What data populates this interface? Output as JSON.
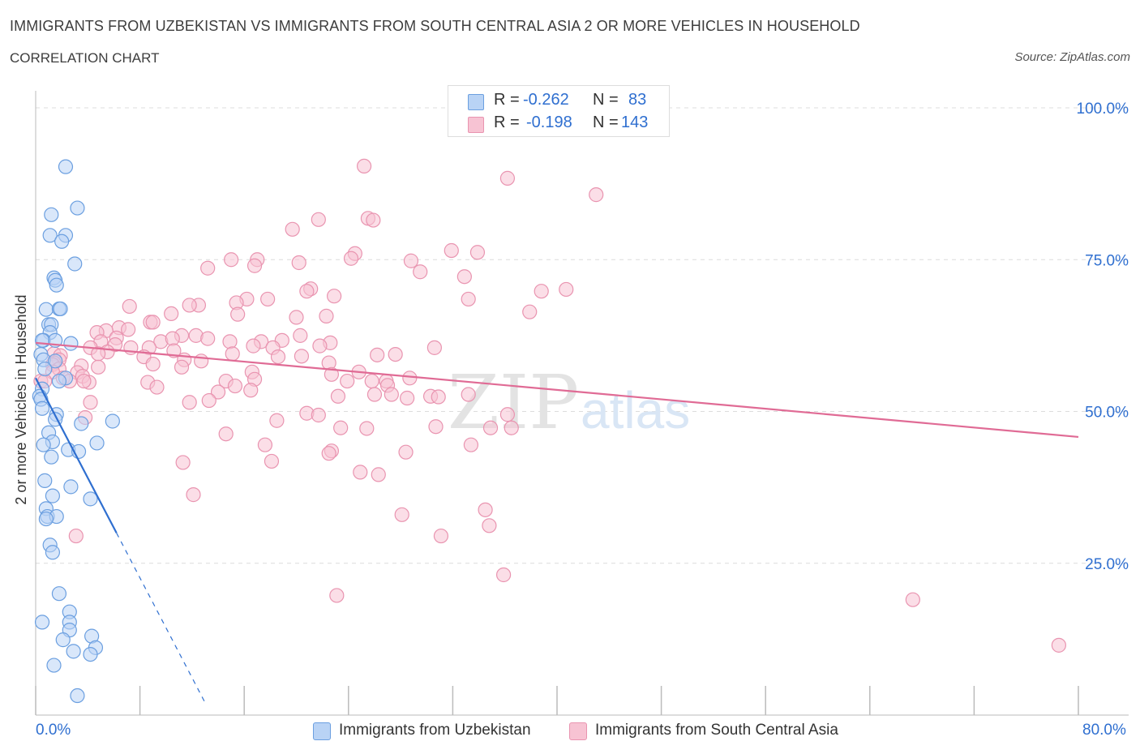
{
  "title": "IMMIGRANTS FROM UZBEKISTAN VS IMMIGRANTS FROM SOUTH CENTRAL ASIA 2 OR MORE VEHICLES IN HOUSEHOLD",
  "subtitle": "CORRELATION CHART",
  "source": "Source: ZipAtlas.com",
  "watermark": {
    "zip": "ZIP",
    "atlas": "atlas"
  },
  "stats": [
    {
      "r_label": "R =",
      "r_value": "-0.262",
      "n_label": "N =",
      "n_value": "83",
      "fill": "#b9d3f5",
      "stroke": "#6b9fe0"
    },
    {
      "r_label": "R =",
      "r_value": "-0.198",
      "n_label": "N =",
      "n_value": "143",
      "fill": "#f7c3d3",
      "stroke": "#e994b0"
    }
  ],
  "legend": [
    {
      "label": "Immigrants from Uzbekistan"
    },
    {
      "label": "Immigrants from South Central Asia"
    }
  ],
  "x_axis": {
    "min_label": "0.0%",
    "max_label": "80.0%"
  },
  "chart_data": {
    "type": "scatter",
    "title": "IMMIGRANTS FROM UZBEKISTAN VS IMMIGRANTS FROM SOUTH CENTRAL ASIA 2 OR MORE VEHICLES IN HOUSEHOLD",
    "xlabel": "",
    "ylabel": "2 or more Vehicles in Household",
    "xlim": [
      0,
      80
    ],
    "ylim": [
      0,
      100
    ],
    "y_ticks": [
      25,
      50,
      75,
      100
    ],
    "y_tick_labels": [
      "25.0%",
      "50.0%",
      "75.0%",
      "100.0%"
    ],
    "x_tick_labels": [
      "0.0%",
      "80.0%"
    ],
    "grid": true,
    "series": [
      {
        "name": "Immigrants from Uzbekistan",
        "color": "#6b9fe0",
        "fill": "#b9d3f5",
        "trend": {
          "x0": 0,
          "y0": 55.5,
          "x1": 6.2,
          "y1": 30.0,
          "dash_to_x": 13
        },
        "points": [
          [
            2.3,
            90.3
          ],
          [
            1.2,
            82.4
          ],
          [
            3.2,
            83.5
          ],
          [
            1.1,
            79.0
          ],
          [
            2.3,
            79.0
          ],
          [
            2.0,
            78.0
          ],
          [
            3.0,
            74.3
          ],
          [
            1.4,
            72.0
          ],
          [
            1.5,
            71.6
          ],
          [
            1.6,
            70.8
          ],
          [
            0.8,
            66.8
          ],
          [
            1.8,
            66.9
          ],
          [
            1.9,
            66.9
          ],
          [
            1.0,
            64.3
          ],
          [
            1.2,
            64.3
          ],
          [
            1.1,
            63.0
          ],
          [
            0.6,
            61.7
          ],
          [
            1.5,
            61.7
          ],
          [
            0.5,
            61.7
          ],
          [
            2.7,
            61.2
          ],
          [
            0.4,
            59.4
          ],
          [
            0.6,
            58.5
          ],
          [
            1.5,
            58.3
          ],
          [
            0.7,
            57.0
          ],
          [
            2.3,
            55.5
          ],
          [
            1.8,
            55.0
          ],
          [
            0.5,
            53.7
          ],
          [
            0.3,
            52.5
          ],
          [
            0.4,
            52.0
          ],
          [
            0.5,
            50.5
          ],
          [
            1.6,
            49.5
          ],
          [
            1.5,
            48.7
          ],
          [
            3.5,
            48.0
          ],
          [
            5.9,
            48.4
          ],
          [
            1.0,
            46.5
          ],
          [
            1.3,
            45.0
          ],
          [
            0.6,
            44.5
          ],
          [
            4.7,
            44.8
          ],
          [
            2.5,
            43.7
          ],
          [
            3.3,
            43.4
          ],
          [
            1.2,
            42.5
          ],
          [
            0.7,
            38.6
          ],
          [
            2.7,
            37.6
          ],
          [
            1.3,
            36.1
          ],
          [
            4.2,
            35.6
          ],
          [
            0.8,
            34.0
          ],
          [
            0.9,
            32.7
          ],
          [
            1.6,
            32.7
          ],
          [
            0.8,
            32.3
          ],
          [
            1.1,
            28.0
          ],
          [
            1.3,
            26.8
          ],
          [
            1.8,
            20.0
          ],
          [
            2.6,
            17.0
          ],
          [
            0.5,
            15.3
          ],
          [
            2.6,
            15.3
          ],
          [
            2.6,
            14.0
          ],
          [
            4.3,
            13.0
          ],
          [
            2.1,
            12.4
          ],
          [
            4.6,
            11.1
          ],
          [
            2.9,
            10.5
          ],
          [
            4.2,
            10.0
          ],
          [
            1.4,
            8.2
          ],
          [
            3.2,
            3.2
          ]
        ]
      },
      {
        "name": "Immigrants from South Central Asia",
        "color": "#e994b0",
        "fill": "#f7c3d3",
        "trend": {
          "x0": 0,
          "y0": 61.3,
          "x1": 80,
          "y1": 45.8
        },
        "points": [
          [
            25.2,
            90.4
          ],
          [
            36.2,
            88.4
          ],
          [
            43.0,
            85.7
          ],
          [
            25.5,
            81.8
          ],
          [
            25.9,
            81.5
          ],
          [
            21.7,
            81.6
          ],
          [
            19.7,
            80.0
          ],
          [
            24.5,
            76.0
          ],
          [
            33.9,
            76.2
          ],
          [
            31.9,
            76.5
          ],
          [
            15.0,
            75.0
          ],
          [
            17.0,
            75.0
          ],
          [
            24.2,
            75.2
          ],
          [
            20.2,
            74.5
          ],
          [
            28.8,
            74.8
          ],
          [
            13.2,
            73.6
          ],
          [
            16.8,
            74.0
          ],
          [
            29.5,
            73.0
          ],
          [
            32.9,
            72.2
          ],
          [
            21.1,
            70.2
          ],
          [
            20.8,
            69.8
          ],
          [
            38.8,
            69.8
          ],
          [
            40.7,
            70.1
          ],
          [
            22.9,
            69.0
          ],
          [
            16.2,
            68.5
          ],
          [
            17.8,
            68.5
          ],
          [
            33.2,
            68.5
          ],
          [
            12.5,
            67.5
          ],
          [
            11.8,
            67.5
          ],
          [
            15.4,
            67.9
          ],
          [
            7.2,
            67.3
          ],
          [
            37.9,
            66.4
          ],
          [
            10.4,
            66.1
          ],
          [
            15.5,
            66.0
          ],
          [
            20.0,
            65.5
          ],
          [
            22.3,
            65.7
          ],
          [
            8.8,
            64.7
          ],
          [
            9.0,
            64.7
          ],
          [
            6.4,
            63.8
          ],
          [
            7.1,
            63.5
          ],
          [
            11.2,
            62.5
          ],
          [
            12.3,
            62.5
          ],
          [
            20.3,
            62.5
          ],
          [
            5.4,
            63.3
          ],
          [
            4.7,
            63.0
          ],
          [
            6.2,
            62.1
          ],
          [
            5.0,
            61.5
          ],
          [
            9.6,
            61.5
          ],
          [
            10.5,
            62.0
          ],
          [
            13.2,
            62.0
          ],
          [
            14.9,
            61.5
          ],
          [
            17.3,
            61.5
          ],
          [
            18.9,
            61.7
          ],
          [
            22.6,
            61.3
          ],
          [
            6.1,
            61.0
          ],
          [
            4.2,
            60.5
          ],
          [
            7.3,
            60.5
          ],
          [
            8.7,
            60.5
          ],
          [
            16.7,
            60.8
          ],
          [
            21.8,
            60.8
          ],
          [
            30.6,
            60.5
          ],
          [
            18.2,
            60.5
          ],
          [
            10.6,
            60.0
          ],
          [
            5.5,
            59.8
          ],
          [
            4.8,
            59.5
          ],
          [
            1.4,
            59.5
          ],
          [
            1.9,
            59.2
          ],
          [
            8.3,
            59.0
          ],
          [
            20.4,
            59.1
          ],
          [
            26.2,
            59.3
          ],
          [
            27.6,
            59.4
          ],
          [
            15.1,
            59.5
          ],
          [
            18.6,
            59.0
          ],
          [
            11.4,
            58.5
          ],
          [
            1.8,
            58.5
          ],
          [
            1.4,
            58.0
          ],
          [
            1.3,
            57.7
          ],
          [
            9.0,
            57.8
          ],
          [
            12.7,
            58.3
          ],
          [
            22.5,
            58.0
          ],
          [
            3.5,
            57.5
          ],
          [
            1.8,
            57.0
          ],
          [
            11.2,
            57.3
          ],
          [
            4.8,
            57.3
          ],
          [
            16.6,
            56.5
          ],
          [
            1.3,
            56.5
          ],
          [
            3.2,
            56.4
          ],
          [
            22.7,
            56.1
          ],
          [
            24.8,
            56.5
          ],
          [
            3.6,
            55.8
          ],
          [
            2.1,
            55.5
          ],
          [
            28.7,
            55.5
          ],
          [
            23.9,
            55.0
          ],
          [
            25.8,
            55.0
          ],
          [
            0.4,
            55.0
          ],
          [
            0.7,
            55.0
          ],
          [
            2.6,
            55.0
          ],
          [
            14.6,
            55.0
          ],
          [
            16.8,
            55.3
          ],
          [
            26.9,
            55.0
          ],
          [
            8.6,
            54.8
          ],
          [
            4.1,
            54.8
          ],
          [
            3.7,
            55.0
          ],
          [
            27.0,
            54.3
          ],
          [
            15.3,
            54.2
          ],
          [
            9.3,
            54.0
          ],
          [
            14.0,
            53.2
          ],
          [
            16.5,
            53.5
          ],
          [
            23.2,
            52.5
          ],
          [
            26.0,
            52.8
          ],
          [
            27.3,
            52.8
          ],
          [
            30.3,
            52.5
          ],
          [
            30.9,
            52.4
          ],
          [
            33.2,
            52.8
          ],
          [
            28.5,
            52.2
          ],
          [
            11.8,
            51.5
          ],
          [
            13.3,
            51.8
          ],
          [
            4.2,
            51.5
          ],
          [
            20.8,
            49.7
          ],
          [
            21.7,
            49.4
          ],
          [
            36.2,
            49.5
          ],
          [
            18.5,
            48.5
          ],
          [
            3.8,
            49.0
          ],
          [
            23.4,
            47.3
          ],
          [
            25.4,
            47.2
          ],
          [
            36.5,
            47.3
          ],
          [
            34.9,
            47.3
          ],
          [
            30.7,
            47.5
          ],
          [
            14.6,
            46.3
          ],
          [
            33.4,
            44.5
          ],
          [
            17.6,
            44.5
          ],
          [
            22.7,
            43.5
          ],
          [
            22.5,
            43.1
          ],
          [
            28.4,
            43.3
          ],
          [
            18.1,
            41.8
          ],
          [
            11.3,
            41.6
          ],
          [
            24.9,
            40.0
          ],
          [
            26.3,
            39.6
          ],
          [
            12.1,
            36.3
          ],
          [
            34.5,
            33.8
          ],
          [
            28.1,
            33.0
          ],
          [
            34.8,
            31.2
          ],
          [
            3.1,
            29.5
          ],
          [
            31.1,
            29.5
          ],
          [
            35.9,
            23.1
          ],
          [
            23.1,
            19.7
          ],
          [
            67.3,
            19.0
          ],
          [
            78.5,
            11.5
          ]
        ]
      }
    ]
  }
}
